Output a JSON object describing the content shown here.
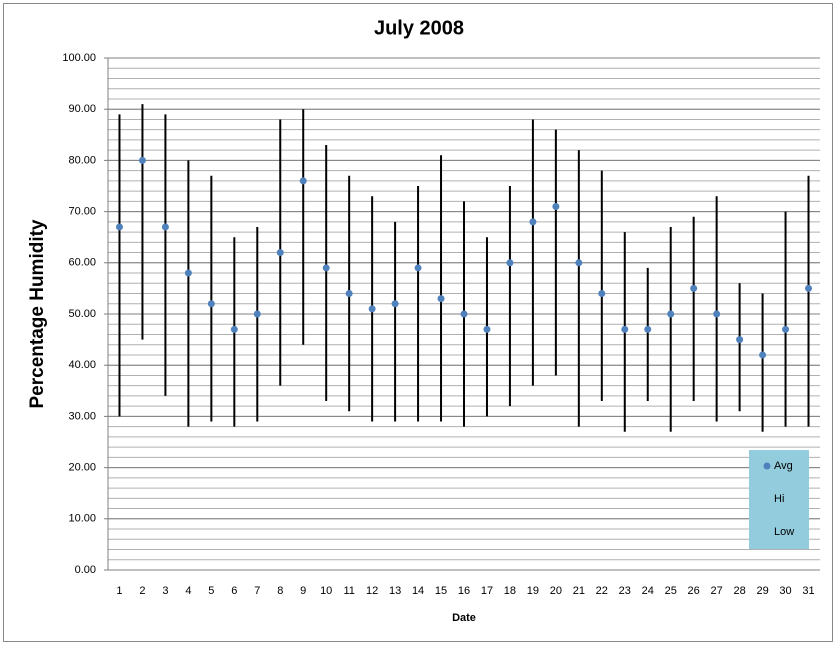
{
  "chart_data": {
    "type": "hilo",
    "title": "July 2008",
    "x_label": "Date",
    "y_label": "Percentage Humidity",
    "categories": [
      "1",
      "2",
      "3",
      "4",
      "5",
      "6",
      "7",
      "8",
      "9",
      "10",
      "11",
      "12",
      "13",
      "14",
      "15",
      "16",
      "17",
      "18",
      "19",
      "20",
      "21",
      "22",
      "23",
      "24",
      "25",
      "26",
      "27",
      "28",
      "29",
      "30",
      "31"
    ],
    "series": [
      {
        "name": "Avg",
        "color": "#4f81bd",
        "marker": "circle",
        "values": [
          67,
          80,
          67,
          58,
          52,
          47,
          50,
          62,
          76,
          59,
          54,
          51,
          52,
          59,
          53,
          50,
          47,
          60,
          68,
          71,
          60,
          54,
          47,
          47,
          50,
          55,
          50,
          45,
          42,
          47,
          55
        ]
      },
      {
        "name": "Hi",
        "color": "#000000",
        "marker": "none",
        "values": [
          89,
          91,
          89,
          80,
          77,
          65,
          67,
          88,
          90,
          83,
          77,
          73,
          68,
          75,
          81,
          72,
          65,
          75,
          88,
          86,
          82,
          78,
          66,
          59,
          67,
          69,
          73,
          56,
          54,
          70,
          77
        ]
      },
      {
        "name": "Low",
        "color": "#000000",
        "marker": "none",
        "values": [
          30,
          45,
          34,
          28,
          29,
          28,
          29,
          36,
          44,
          33,
          31,
          29,
          29,
          29,
          29,
          28,
          30,
          32,
          36,
          38,
          28,
          33,
          27,
          33,
          27,
          33,
          29,
          31,
          27,
          28,
          28
        ]
      }
    ],
    "ylim": [
      0,
      100
    ],
    "yticks": [
      {
        "value": 0,
        "label": "0.00"
      },
      {
        "value": 10,
        "label": "10.00"
      },
      {
        "value": 20,
        "label": "20.00"
      },
      {
        "value": 30,
        "label": "30.00"
      },
      {
        "value": 40,
        "label": "40.00"
      },
      {
        "value": 50,
        "label": "50.00"
      },
      {
        "value": 60,
        "label": "60.00"
      },
      {
        "value": 70,
        "label": "70.00"
      },
      {
        "value": 80,
        "label": "80.00"
      },
      {
        "value": 90,
        "label": "90.00"
      },
      {
        "value": 100,
        "label": "100.00"
      }
    ],
    "minor_grid_step": 2,
    "grid": true,
    "legend_position": "lower-right",
    "legend_color": "#93cddd"
  }
}
